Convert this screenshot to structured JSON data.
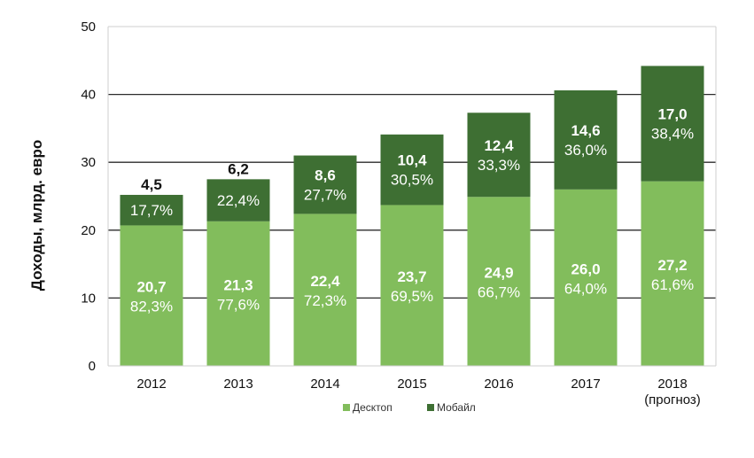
{
  "chart_data": {
    "type": "bar",
    "stacked": true,
    "title": "",
    "ylabel": "Доходы, млрд. евро",
    "xlabel": "",
    "ylim": [
      0,
      50
    ],
    "yticks": [
      0,
      10,
      20,
      30,
      40,
      50
    ],
    "categories": [
      [
        "2012"
      ],
      [
        "2013"
      ],
      [
        "2014"
      ],
      [
        "2015"
      ],
      [
        "2016"
      ],
      [
        "2017"
      ],
      [
        "2018",
        "(прогноз)"
      ]
    ],
    "series": [
      {
        "name": "Десктоп",
        "color": "#82bd5c",
        "values": [
          20.7,
          21.3,
          22.4,
          23.7,
          24.9,
          26.0,
          27.2
        ],
        "value_labels": [
          "20,7",
          "21,3",
          "22,4",
          "23,7",
          "24,9",
          "26,0",
          "27,2"
        ],
        "share_labels": [
          "82,3%",
          "77,6%",
          "72,3%",
          "69,5%",
          "66,7%",
          "64,0%",
          "61,6%"
        ]
      },
      {
        "name": "Мобайл",
        "color": "#3e6f33",
        "values": [
          4.5,
          6.2,
          8.6,
          10.4,
          12.4,
          14.6,
          17.0
        ],
        "value_labels": [
          "4,5",
          "6,2",
          "8,6",
          "10,4",
          "12,4",
          "14,6",
          "17,0"
        ],
        "share_labels": [
          "17,7%",
          "22,4%",
          "27,7%",
          "30,5%",
          "33,3%",
          "36,0%",
          "38,4%"
        ]
      }
    ],
    "legend": {
      "position": "bottom"
    },
    "grid": true
  }
}
